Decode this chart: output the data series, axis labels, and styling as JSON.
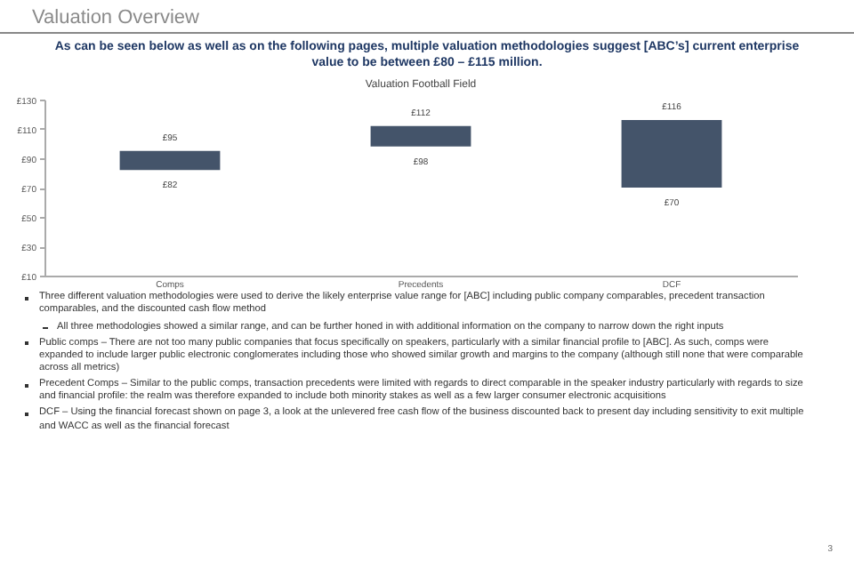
{
  "chart_data": {
    "type": "bar",
    "title": "Valuation Overview",
    "subtitle": "As can be seen below as well as on the following pages, multiple valuation methodologies suggest [ABC’s] current enterprise value to be between £80 – £115 million.",
    "xlabel": "Valuation Football Field",
    "categories": [
      "Comps",
      "Precedents",
      "DCF"
    ],
    "base": [
      82,
      98,
      70
    ],
    "values": [
      13,
      14,
      46
    ],
    "color": "#44546a",
    "ylim": [
      10,
      130
    ],
    "yticks": [
      {
        "value": 10,
        "label": "£10"
      },
      {
        "value": 30,
        "label": "£30"
      },
      {
        "value": 50,
        "label": "£50"
      },
      {
        "value": 70,
        "label": "£70"
      },
      {
        "value": 90,
        "label": "£90"
      },
      {
        "value": 110,
        "label": "£110"
      },
      {
        "value": 130,
        "label": "£130"
      }
    ],
    "grid": false,
    "annotations": [
      {
        "text": "£95",
        "x": "Comps",
        "y": 95
      },
      {
        "text": "£82",
        "x": "Comps",
        "y": 82
      },
      {
        "text": "£112",
        "x": "Precedents",
        "y": 112
      },
      {
        "text": "£98",
        "x": "Precedents",
        "y": 98
      },
      {
        "text": "£116",
        "x": "DCF",
        "y": 116
      },
      {
        "text": "£70",
        "x": "DCF",
        "y": 70
      },
      "Three different valuation methodologies were used to derive the likely enterprise value range for [ABC] including public company comparables, precedent transaction comparables, and the discounted cash flow method",
      "All three methodologies showed a similar range, and can be further honed in with additional information on the company to narrow down the right inputs",
      "Public comps – There are not too many public companies that focus specifically on speakers, particularly with a similar financial profile to [ABC]. As such, comps were expanded to include larger public electronic conglomerates including those who showed similar growth and margins to the company (although still none that were comparable across all metrics)",
      "Precedent Comps – Similar to the public comps, transaction precedents were limited with regards to direct comparable in the speaker industry particularly with regards to size and financial profile: the realm was therefore expanded to include both minority stakes as well as a few larger consumer electronic acquisitions",
      "DCF – Using the financial forecast shown on page 3, a look at the unlevered free cash flow of the business discounted back to present day including sensitivity to exit multiple and WACC as well as the financial forecast",
      "3"
    ]
  }
}
